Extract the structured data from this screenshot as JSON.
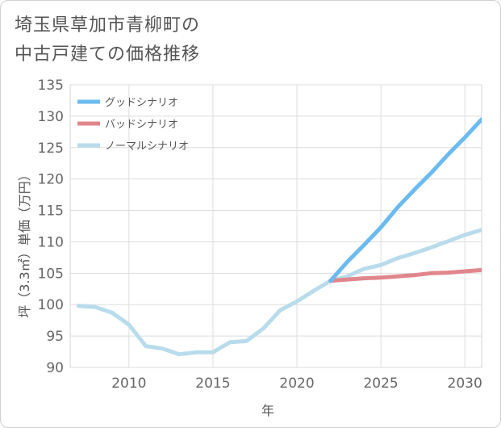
{
  "title": "埼玉県草加市青柳町の\n中古戸建ての価格推移",
  "chart_data": {
    "type": "line",
    "xlabel": "年",
    "ylabel": "坪（3.3㎡）単価（万円）",
    "xlim": [
      2006.5,
      2031
    ],
    "ylim": [
      90,
      135
    ],
    "x_ticks": [
      2010,
      2015,
      2020,
      2025,
      2030
    ],
    "y_ticks": [
      90,
      95,
      100,
      105,
      110,
      115,
      120,
      125,
      130,
      135
    ],
    "grid": true,
    "legend_position": "top-left",
    "series": [
      {
        "name": "グッドシナリオ",
        "color": "#6bbaf0",
        "x": [
          2022,
          2023,
          2024,
          2025,
          2026,
          2027,
          2028,
          2029,
          2030,
          2031
        ],
        "y": [
          103.8,
          106.8,
          109.5,
          112.3,
          115.5,
          118.3,
          121.0,
          123.9,
          126.6,
          129.5
        ]
      },
      {
        "name": "バッドシナリオ",
        "color": "#e0868d",
        "x": [
          2022,
          2023,
          2024,
          2025,
          2026,
          2027,
          2028,
          2029,
          2030,
          2031
        ],
        "y": [
          103.8,
          104.0,
          104.2,
          104.3,
          104.5,
          104.7,
          105.0,
          105.1,
          105.3,
          105.5
        ]
      },
      {
        "name": "ノーマルシナリオ",
        "color": "#b9dcec",
        "x": [
          2007,
          2008,
          2009,
          2010,
          2011,
          2012,
          2013,
          2014,
          2015,
          2016,
          2017,
          2018,
          2019,
          2020,
          2021,
          2022,
          2023,
          2024,
          2025,
          2026,
          2027,
          2028,
          2029,
          2030,
          2031
        ],
        "y": [
          99.8,
          99.6,
          98.7,
          96.8,
          93.4,
          93.0,
          92.1,
          92.4,
          92.4,
          94.0,
          94.2,
          96.2,
          99.1,
          100.5,
          102.2,
          103.8,
          104.5,
          105.7,
          106.3,
          107.4,
          108.2,
          109.1,
          110.1,
          111.1,
          111.9
        ]
      }
    ]
  }
}
